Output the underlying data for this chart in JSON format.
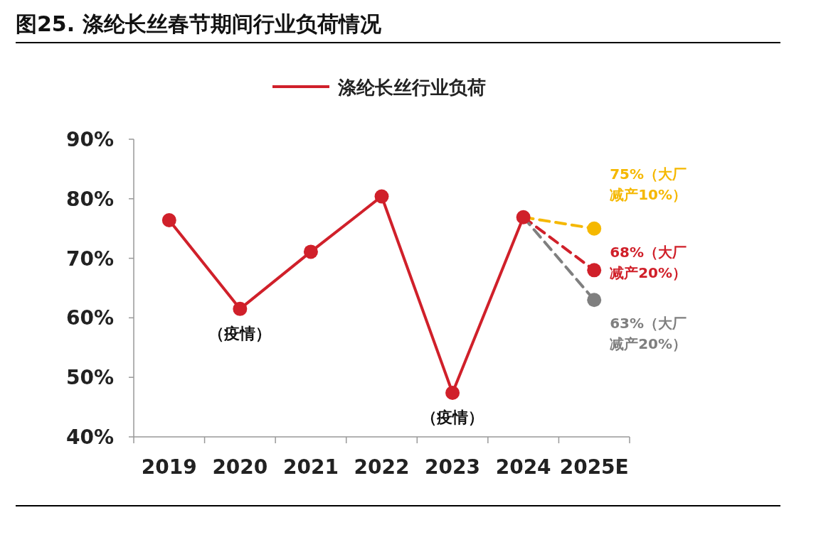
{
  "chart_data": {
    "type": "line",
    "title": "图25. 涤纶长丝春节期间行业负荷情况",
    "categories": [
      "2019",
      "2020",
      "2021",
      "2022",
      "2023",
      "2024",
      "2025E"
    ],
    "series": [
      {
        "name": "涤纶长丝行业负荷",
        "color": "#d0202a",
        "values": [
          76.4,
          61.5,
          71.1,
          80.4,
          47.4,
          76.9,
          null
        ]
      },
      {
        "color": "#f5b800",
        "values": [
          null,
          null,
          null,
          null,
          null,
          76.9,
          75
        ],
        "line_style": "dashed",
        "value_labels": [
          null,
          null,
          null,
          null,
          null,
          null,
          "75%（大厂减产10%）"
        ]
      },
      {
        "color": "#d0202a",
        "values": [
          null,
          null,
          null,
          null,
          null,
          76.9,
          68
        ],
        "line_style": "dashed",
        "value_labels": [
          null,
          null,
          null,
          null,
          null,
          null,
          "68%（大厂减产20%）"
        ]
      },
      {
        "color": "#7f7f7f",
        "values": [
          null,
          null,
          null,
          null,
          null,
          76.9,
          63
        ],
        "line_style": "dashed",
        "value_labels": [
          null,
          null,
          null,
          null,
          null,
          null,
          "63%（大厂减产20%）"
        ]
      }
    ],
    "annotations": [
      {
        "text": "（疫情）",
        "x": "2020",
        "y": 61.5
      },
      {
        "text": "（疫情）",
        "x": "2023",
        "y": 47.4
      }
    ],
    "ylim": [
      40,
      90
    ],
    "yticks": [
      {
        "value": 40,
        "label": "40%"
      },
      {
        "value": 50,
        "label": "50%"
      },
      {
        "value": 60,
        "label": "60%"
      },
      {
        "value": 70,
        "label": "70%"
      },
      {
        "value": 80,
        "label": "80%"
      },
      {
        "value": 90,
        "label": "90%"
      }
    ],
    "grid": false,
    "legend": "top",
    "marker": "circle",
    "line_style": "solid"
  }
}
